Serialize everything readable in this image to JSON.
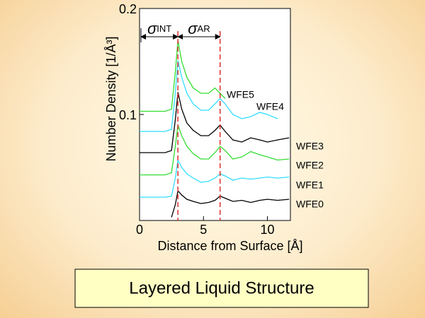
{
  "chart_data": {
    "type": "line",
    "x_label": "Distance from Surface [Å]",
    "y_label": "Number Density [1/Å³]",
    "x": [
      0,
      1,
      2,
      2.5,
      2.8,
      3.0,
      3.3,
      3.7,
      4.2,
      4.8,
      5.4,
      5.9,
      6.3,
      6.7,
      7.3,
      8.0,
      8.7,
      9.4,
      10.0,
      10.8,
      11.7
    ],
    "series": [
      {
        "name": "WFE0",
        "color": "#000000",
        "values": [
          null,
          null,
          null,
          0.003,
          0.015,
          0.028,
          0.024,
          0.02,
          0.018,
          0.016,
          0.017,
          0.019,
          0.023,
          0.021,
          0.018,
          0.019,
          0.017,
          0.019,
          0.02,
          0.019,
          0.02
        ]
      },
      {
        "name": "WFE1",
        "color": "#33ddff",
        "values": [
          0.022,
          0.022,
          0.022,
          0.023,
          0.04,
          0.057,
          0.05,
          0.044,
          0.04,
          0.036,
          0.037,
          0.04,
          0.044,
          0.042,
          0.038,
          0.04,
          0.039,
          0.04,
          0.041,
          0.04,
          0.041
        ]
      },
      {
        "name": "WFE2",
        "color": "#33dd33",
        "values": [
          0.043,
          0.043,
          0.043,
          0.045,
          0.07,
          0.09,
          0.08,
          0.07,
          0.063,
          0.058,
          0.058,
          0.064,
          0.07,
          0.066,
          0.058,
          0.06,
          0.065,
          0.062,
          0.06,
          0.057,
          0.058
        ]
      },
      {
        "name": "WFE3",
        "color": "#000000",
        "values": [
          0.064,
          0.064,
          0.064,
          0.066,
          0.095,
          0.121,
          0.105,
          0.092,
          0.085,
          0.08,
          0.08,
          0.085,
          0.09,
          0.084,
          0.076,
          0.074,
          0.078,
          0.076,
          0.074,
          0.076,
          0.078
        ]
      },
      {
        "name": "WFE4",
        "color": "#33ddff",
        "values": [
          0.084,
          0.084,
          0.084,
          0.086,
          0.12,
          0.151,
          0.135,
          0.12,
          0.11,
          0.104,
          0.104,
          0.11,
          0.115,
          0.11,
          0.1,
          0.096,
          0.098,
          0.102,
          0.1,
          0.096,
          null
        ]
      },
      {
        "name": "WFE5",
        "color": "#33dd33",
        "values": [
          0.103,
          0.103,
          0.103,
          0.105,
          0.14,
          0.17,
          0.15,
          0.135,
          0.125,
          0.12,
          0.12,
          0.125,
          0.12,
          0.115,
          null,
          null,
          null,
          null,
          null,
          null,
          null
        ]
      }
    ],
    "vlines": [
      3.0,
      6.3
    ],
    "vline_color": "#e03030",
    "annotations": [
      {
        "symbol": "σ",
        "sub": "INT"
      },
      {
        "symbol": "σ",
        "sub": "AR"
      }
    ],
    "xlim": [
      0,
      11.8
    ],
    "ylim": [
      0,
      0.2
    ],
    "xticks": [
      0,
      5,
      10
    ],
    "yticks": [
      0.1,
      0.2
    ]
  },
  "footer": {
    "title": "Layered Liquid Structure"
  }
}
